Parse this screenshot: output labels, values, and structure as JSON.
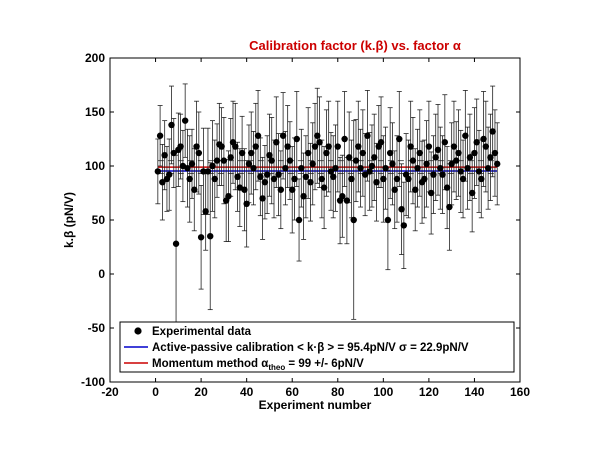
{
  "chart_data": {
    "type": "scatter",
    "title": "Calibration factor (k.β) vs. factor α",
    "xlabel": "Experiment number",
    "ylabel": "k.β (pN/V)",
    "xlim": [
      -20,
      160
    ],
    "ylim": [
      -100,
      200
    ],
    "xticks": [
      "-20",
      "0",
      "20",
      "40",
      "60",
      "80",
      "100",
      "120",
      "140",
      "160"
    ],
    "yticks": [
      "-100",
      "-50",
      "0",
      "50",
      "100",
      "150",
      "200"
    ],
    "grid": false,
    "legend_position": "bottom",
    "colors": {
      "title": "#cc0000",
      "active_passive": "#0000cc",
      "momentum": "#cc0000",
      "points": "#000000"
    },
    "series": [
      {
        "name": "Experimental data",
        "marker": "filled-circle",
        "x": [
          1,
          2,
          3,
          4,
          5,
          6,
          7,
          8,
          9,
          10,
          11,
          12,
          13,
          14,
          15,
          16,
          17,
          18,
          19,
          20,
          21,
          22,
          23,
          24,
          25,
          26,
          27,
          28,
          29,
          30,
          31,
          32,
          33,
          34,
          35,
          36,
          37,
          38,
          39,
          40,
          41,
          42,
          43,
          44,
          45,
          46,
          47,
          48,
          49,
          50,
          51,
          52,
          53,
          54,
          55,
          56,
          57,
          58,
          59,
          60,
          61,
          62,
          63,
          64,
          65,
          66,
          67,
          68,
          69,
          70,
          71,
          72,
          73,
          74,
          75,
          76,
          77,
          78,
          79,
          80,
          81,
          82,
          83,
          84,
          85,
          86,
          87,
          88,
          89,
          90,
          91,
          92,
          93,
          94,
          95,
          96,
          97,
          98,
          99,
          100,
          101,
          102,
          103,
          104,
          105,
          106,
          107,
          108,
          109,
          110,
          111,
          112,
          113,
          114,
          115,
          116,
          117,
          118,
          119,
          120,
          121,
          122,
          123,
          124,
          125,
          126,
          127,
          128,
          129,
          130,
          131,
          132,
          133,
          134,
          135,
          136,
          137,
          138,
          139,
          140,
          141,
          142,
          143,
          144,
          145,
          146,
          147,
          148,
          149,
          150
        ],
        "y": [
          95,
          128,
          85,
          110,
          88,
          92,
          138,
          112,
          28,
          115,
          118,
          100,
          142,
          98,
          88,
          102,
          78,
          118,
          112,
          34,
          95,
          58,
          95,
          35,
          100,
          88,
          105,
          120,
          118,
          105,
          68,
          72,
          108,
          122,
          118,
          90,
          80,
          112,
          78,
          65,
          102,
          112,
          98,
          118,
          128,
          90,
          70,
          85,
          92,
          110,
          105,
          88,
          122,
          92,
          78,
          128,
          98,
          118,
          105,
          78,
          88,
          125,
          50,
          98,
          72,
          90,
          112,
          85,
          102,
          118,
          128,
          122,
          88,
          80,
          112,
          118,
          95,
          90,
          98,
          118,
          68,
          72,
          125,
          68,
          108,
          88,
          50,
          105,
          118,
          98,
          112,
          92,
          128,
          95,
          100,
          108,
          85,
          118,
          122,
          88,
          98,
          50,
          112,
          102,
          78,
          88,
          125,
          60,
          45,
          92,
          88,
          118,
          105,
          78,
          98,
          112,
          85,
          88,
          102,
          118,
          75,
          92,
          108,
          115,
          98,
          92,
          122,
          80,
          62,
          102,
          118,
          105,
          112,
          95,
          88,
          128,
          98,
          108,
          75,
          112,
          122,
          95,
          88,
          125,
          118,
          98,
          108,
          132,
          112,
          102
        ],
        "err": [
          30,
          28,
          35,
          32,
          30,
          33,
          36,
          32,
          82,
          34,
          30,
          33,
          34,
          36,
          40,
          32,
          38,
          42,
          38,
          48,
          40,
          36,
          40,
          68,
          42,
          36,
          34,
          38,
          36,
          40,
          38,
          42,
          36,
          38,
          40,
          32,
          36,
          34,
          38,
          40,
          36,
          38,
          34,
          40,
          42,
          36,
          38,
          34,
          36,
          38,
          40,
          36,
          42,
          38,
          36,
          40,
          34,
          38,
          36,
          40,
          38,
          44,
          38,
          36,
          40,
          38,
          42,
          36,
          38,
          40,
          44,
          42,
          36,
          38,
          40,
          42,
          36,
          38,
          40,
          42,
          40,
          38,
          44,
          40,
          42,
          36,
          92,
          38,
          42,
          36,
          40,
          38,
          42,
          36,
          38,
          40,
          36,
          38,
          42,
          40,
          38,
          46,
          42,
          38,
          36,
          40,
          44,
          42,
          40,
          38,
          36,
          42,
          40,
          38,
          36,
          40,
          38,
          36,
          40,
          42,
          38,
          36,
          40,
          42,
          38,
          36,
          44,
          38,
          40,
          38,
          42,
          36,
          40,
          38,
          36,
          42,
          38,
          40,
          36,
          42,
          40,
          38,
          36,
          44,
          42,
          38,
          40,
          42,
          40,
          38
        ]
      },
      {
        "name": "Active-passive calibration < k·β > = 95.4pN/V  σ = 22.9pN/V",
        "type": "hline",
        "value": 95.4
      },
      {
        "name": "Momentum method αtheo = 99 +/- 6pN/V",
        "type": "hline",
        "value": 99,
        "band": [
          93,
          105
        ]
      }
    ],
    "legend": {
      "item1": "Experimental data",
      "item2": "Active-passive calibration < k·β > = 95.4pN/V  σ = 22.9pN/V",
      "item3_pre": "Momentum method α",
      "item3_sub": "theo",
      "item3_post": " = 99 +/- 6pN/V"
    }
  }
}
